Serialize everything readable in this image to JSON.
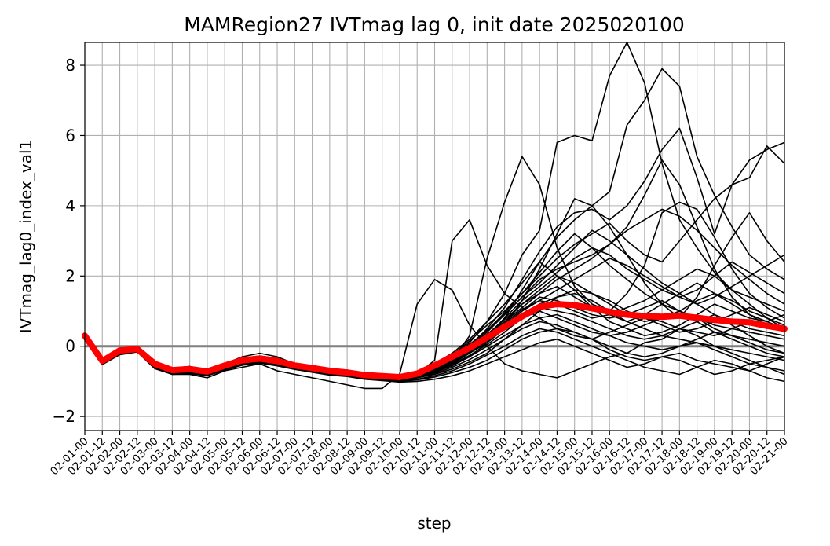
{
  "chart_data": {
    "type": "line",
    "title": "MAMRegion27 IVTmag lag 0, init date 2025020100",
    "xlabel": "step",
    "ylabel": "IVTmag_lag0_index_val1",
    "x": [
      "02-01-00",
      "02-01-12",
      "02-02-00",
      "02-02-12",
      "02-03-00",
      "02-03-12",
      "02-04-00",
      "02-04-12",
      "02-05-00",
      "02-05-12",
      "02-06-00",
      "02-06-12",
      "02-07-00",
      "02-07-12",
      "02-08-00",
      "02-08-12",
      "02-09-00",
      "02-09-12",
      "02-10-00",
      "02-10-12",
      "02-11-00",
      "02-11-12",
      "02-12-00",
      "02-12-12",
      "02-13-00",
      "02-13-12",
      "02-14-00",
      "02-14-12",
      "02-15-00",
      "02-15-12",
      "02-16-00",
      "02-16-12",
      "02-17-00",
      "02-17-12",
      "02-18-00",
      "02-18-12",
      "02-19-00",
      "02-19-12",
      "02-20-00",
      "02-20-12",
      "02-21-00"
    ],
    "ylim": [
      -2.4,
      8.65
    ],
    "yticks": [
      -2,
      0,
      2,
      4,
      6,
      8
    ],
    "ytick_labels": [
      "−2",
      "0",
      "2",
      "4",
      "6",
      "8"
    ],
    "grid": true,
    "reference_line": {
      "y": 0,
      "color": "#808080"
    },
    "ensemble_color": "#000000",
    "mean_color": "#ff0000",
    "mean": [
      0.3,
      -0.42,
      -0.12,
      -0.08,
      -0.5,
      -0.68,
      -0.65,
      -0.72,
      -0.55,
      -0.4,
      -0.35,
      -0.42,
      -0.55,
      -0.62,
      -0.7,
      -0.75,
      -0.82,
      -0.85,
      -0.88,
      -0.78,
      -0.55,
      -0.3,
      -0.05,
      0.25,
      0.55,
      0.85,
      1.12,
      1.2,
      1.17,
      1.08,
      0.98,
      0.9,
      0.86,
      0.84,
      0.87,
      0.81,
      0.75,
      0.7,
      0.68,
      0.58,
      0.5
    ],
    "ensemble_members": [
      [
        0.3,
        -0.5,
        -0.2,
        -0.1,
        -0.6,
        -0.8,
        -0.8,
        -0.9,
        -0.7,
        -0.6,
        -0.5,
        -0.7,
        -0.8,
        -0.9,
        -1.0,
        -1.1,
        -1.2,
        -1.2,
        -0.8,
        1.2,
        1.9,
        1.6,
        0.6,
        0.0,
        -0.5,
        -0.7,
        -0.8,
        -0.9,
        -0.7,
        -0.5,
        -0.3,
        -0.2,
        0.1,
        0.2,
        0.5,
        0.3,
        0.0,
        -0.2,
        -0.4,
        -0.6,
        -0.8
      ],
      [
        0.3,
        -0.4,
        -0.1,
        0.0,
        -0.5,
        -0.7,
        -0.6,
        -0.7,
        -0.5,
        -0.3,
        -0.2,
        -0.3,
        -0.5,
        -0.6,
        -0.7,
        -0.7,
        -0.8,
        -0.9,
        -1.0,
        -0.8,
        -0.4,
        3.0,
        3.6,
        2.3,
        1.5,
        1.1,
        0.8,
        0.5,
        0.3,
        0.2,
        0.4,
        0.6,
        0.8,
        0.7,
        0.5,
        0.4,
        0.3,
        0.5,
        0.7,
        0.6,
        0.4
      ],
      [
        0.3,
        -0.45,
        -0.15,
        -0.05,
        -0.55,
        -0.7,
        -0.7,
        -0.75,
        -0.6,
        -0.45,
        -0.4,
        -0.5,
        -0.6,
        -0.7,
        -0.75,
        -0.8,
        -0.9,
        -0.95,
        -1.0,
        -0.9,
        -0.7,
        -0.4,
        0.3,
        2.5,
        4.1,
        5.4,
        4.6,
        2.8,
        1.7,
        1.2,
        1.0,
        1.5,
        2.3,
        3.8,
        4.1,
        3.9,
        3.1,
        2.2,
        1.5,
        1.1,
        0.8
      ],
      [
        0.3,
        -0.4,
        -0.1,
        -0.05,
        -0.45,
        -0.65,
        -0.6,
        -0.7,
        -0.55,
        -0.4,
        -0.35,
        -0.4,
        -0.55,
        -0.6,
        -0.65,
        -0.7,
        -0.8,
        -0.85,
        -0.9,
        -0.8,
        -0.6,
        -0.3,
        0.1,
        0.7,
        1.5,
        2.6,
        3.3,
        5.8,
        6.0,
        5.85,
        7.7,
        8.65,
        7.5,
        5.2,
        3.6,
        2.8,
        2.1,
        1.6,
        1.4,
        1.2,
        1.0
      ],
      [
        0.3,
        -0.42,
        -0.12,
        -0.08,
        -0.5,
        -0.7,
        -0.65,
        -0.7,
        -0.55,
        -0.4,
        -0.35,
        -0.4,
        -0.5,
        -0.6,
        -0.7,
        -0.75,
        -0.8,
        -0.85,
        -0.9,
        -0.85,
        -0.7,
        -0.5,
        -0.2,
        0.2,
        0.8,
        1.6,
        2.4,
        3.1,
        3.6,
        4.0,
        4.4,
        6.3,
        7.0,
        7.9,
        7.4,
        5.4,
        4.3,
        3.4,
        2.6,
        2.2,
        1.9
      ],
      [
        0.3,
        -0.44,
        -0.14,
        -0.06,
        -0.52,
        -0.68,
        -0.66,
        -0.72,
        -0.58,
        -0.42,
        -0.36,
        -0.44,
        -0.56,
        -0.64,
        -0.72,
        -0.76,
        -0.84,
        -0.88,
        -0.92,
        -0.85,
        -0.65,
        -0.4,
        0.0,
        0.5,
        1.1,
        1.9,
        2.7,
        3.4,
        3.8,
        3.9,
        3.6,
        4.0,
        4.7,
        5.6,
        6.2,
        4.8,
        3.2,
        4.6,
        5.3,
        5.6,
        5.8
      ],
      [
        0.3,
        -0.38,
        -0.08,
        -0.04,
        -0.46,
        -0.64,
        -0.6,
        -0.68,
        -0.5,
        -0.36,
        -0.3,
        -0.36,
        -0.5,
        -0.58,
        -0.66,
        -0.7,
        -0.78,
        -0.82,
        -0.86,
        -0.76,
        -0.55,
        -0.25,
        0.15,
        0.6,
        1.0,
        1.5,
        2.0,
        2.5,
        2.9,
        3.2,
        3.5,
        3.0,
        2.6,
        2.4,
        3.0,
        3.6,
        4.2,
        4.6,
        4.8,
        5.7,
        5.2
      ],
      [
        0.3,
        -0.46,
        -0.16,
        -0.1,
        -0.55,
        -0.72,
        -0.7,
        -0.76,
        -0.6,
        -0.45,
        -0.4,
        -0.48,
        -0.58,
        -0.66,
        -0.74,
        -0.78,
        -0.86,
        -0.9,
        -0.94,
        -0.88,
        -0.75,
        -0.55,
        -0.3,
        0.1,
        0.6,
        1.3,
        2.2,
        3.2,
        4.2,
        4.0,
        3.4,
        2.6,
        1.8,
        1.2,
        0.8,
        1.4,
        2.3,
        3.1,
        3.8,
        3.0,
        2.4
      ],
      [
        0.3,
        -0.4,
        -0.1,
        -0.06,
        -0.48,
        -0.66,
        -0.62,
        -0.7,
        -0.52,
        -0.38,
        -0.32,
        -0.38,
        -0.52,
        -0.6,
        -0.68,
        -0.72,
        -0.8,
        -0.84,
        -0.88,
        -0.8,
        -0.6,
        -0.35,
        0.05,
        0.45,
        0.9,
        1.4,
        1.9,
        2.2,
        2.4,
        2.6,
        2.9,
        3.4,
        4.3,
        5.3,
        4.6,
        3.4,
        2.2,
        1.4,
        0.9,
        0.6,
        0.4
      ],
      [
        0.3,
        -0.48,
        -0.18,
        -0.12,
        -0.58,
        -0.74,
        -0.72,
        -0.78,
        -0.62,
        -0.48,
        -0.42,
        -0.5,
        -0.6,
        -0.68,
        -0.76,
        -0.8,
        -0.88,
        -0.92,
        -0.96,
        -0.9,
        -0.8,
        -0.65,
        -0.45,
        -0.2,
        0.2,
        0.6,
        1.0,
        1.4,
        1.5,
        1.3,
        1.0,
        0.7,
        0.5,
        0.3,
        0.2,
        0.1,
        0.0,
        -0.1,
        -0.2,
        -0.3,
        -0.4
      ],
      [
        0.3,
        -0.36,
        -0.06,
        -0.02,
        -0.44,
        -0.62,
        -0.58,
        -0.66,
        -0.48,
        -0.34,
        -0.28,
        -0.34,
        -0.48,
        -0.56,
        -0.64,
        -0.68,
        -0.76,
        -0.8,
        -0.84,
        -0.74,
        -0.5,
        -0.2,
        0.2,
        0.7,
        1.2,
        1.8,
        2.4,
        2.0,
        1.6,
        1.1,
        0.7,
        0.5,
        0.3,
        0.4,
        0.6,
        0.9,
        1.2,
        1.0,
        0.8,
        0.7,
        0.9
      ],
      [
        0.3,
        -0.5,
        -0.22,
        -0.14,
        -0.62,
        -0.78,
        -0.76,
        -0.82,
        -0.66,
        -0.52,
        -0.46,
        -0.54,
        -0.64,
        -0.72,
        -0.8,
        -0.84,
        -0.92,
        -0.96,
        -1.0,
        -0.96,
        -0.88,
        -0.75,
        -0.6,
        -0.4,
        -0.1,
        0.2,
        0.4,
        0.5,
        0.4,
        0.2,
        -0.1,
        -0.3,
        -0.4,
        -0.3,
        -0.2,
        -0.4,
        -0.5,
        -0.6,
        -0.7,
        -0.5,
        -0.3
      ],
      [
        0.3,
        -0.42,
        -0.1,
        -0.06,
        -0.48,
        -0.66,
        -0.62,
        -0.7,
        -0.54,
        -0.38,
        -0.34,
        -0.4,
        -0.52,
        -0.6,
        -0.68,
        -0.74,
        -0.82,
        -0.86,
        -0.9,
        -0.82,
        -0.62,
        -0.4,
        -0.1,
        0.3,
        0.8,
        1.3,
        1.7,
        2.1,
        2.5,
        2.8,
        2.6,
        2.2,
        1.9,
        1.6,
        1.4,
        1.6,
        2.0,
        2.4,
        2.1,
        1.8,
        1.5
      ],
      [
        0.3,
        -0.44,
        -0.12,
        -0.08,
        -0.5,
        -0.68,
        -0.64,
        -0.72,
        -0.56,
        -0.4,
        -0.36,
        -0.42,
        -0.54,
        -0.62,
        -0.7,
        -0.76,
        -0.84,
        -0.88,
        -0.92,
        -0.84,
        -0.66,
        -0.44,
        -0.15,
        0.2,
        0.6,
        1.0,
        1.4,
        1.3,
        1.1,
        0.9,
        0.8,
        0.9,
        1.1,
        1.3,
        1.0,
        0.7,
        0.4,
        0.2,
        0.0,
        -0.2,
        -0.3
      ],
      [
        0.3,
        -0.38,
        -0.06,
        -0.04,
        -0.46,
        -0.64,
        -0.6,
        -0.68,
        -0.52,
        -0.36,
        -0.3,
        -0.38,
        -0.5,
        -0.58,
        -0.66,
        -0.72,
        -0.8,
        -0.84,
        -0.88,
        -0.78,
        -0.58,
        -0.32,
        0.0,
        0.4,
        0.9,
        1.4,
        1.8,
        2.3,
        2.8,
        3.3,
        3.0,
        2.6,
        2.2,
        1.8,
        1.5,
        1.2,
        0.9,
        0.7,
        0.5,
        0.4,
        0.3
      ],
      [
        0.3,
        -0.46,
        -0.16,
        -0.1,
        -0.54,
        -0.72,
        -0.68,
        -0.74,
        -0.6,
        -0.46,
        -0.4,
        -0.46,
        -0.58,
        -0.66,
        -0.74,
        -0.78,
        -0.86,
        -0.9,
        -0.94,
        -0.88,
        -0.74,
        -0.56,
        -0.3,
        0.0,
        0.3,
        0.6,
        0.8,
        0.9,
        0.7,
        0.5,
        0.3,
        0.1,
        0.0,
        -0.1,
        0.0,
        0.2,
        0.4,
        0.3,
        0.2,
        0.1,
        0.0
      ],
      [
        0.3,
        -0.4,
        -0.08,
        -0.06,
        -0.48,
        -0.66,
        -0.62,
        -0.7,
        -0.54,
        -0.38,
        -0.34,
        -0.4,
        -0.52,
        -0.6,
        -0.68,
        -0.74,
        -0.82,
        -0.86,
        -0.9,
        -0.8,
        -0.6,
        -0.34,
        0.0,
        0.35,
        0.7,
        1.1,
        1.5,
        1.9,
        2.2,
        2.5,
        2.9,
        3.3,
        3.6,
        3.9,
        3.7,
        3.3,
        2.8,
        2.3,
        1.9,
        1.5,
        1.2
      ],
      [
        0.3,
        -0.52,
        -0.24,
        -0.16,
        -0.64,
        -0.8,
        -0.78,
        -0.84,
        -0.68,
        -0.54,
        -0.48,
        -0.56,
        -0.66,
        -0.74,
        -0.82,
        -0.86,
        -0.94,
        -0.98,
        -1.02,
        -1.0,
        -0.94,
        -0.84,
        -0.7,
        -0.5,
        -0.3,
        -0.1,
        0.1,
        0.2,
        0.0,
        -0.2,
        -0.4,
        -0.6,
        -0.5,
        -0.3,
        -0.4,
        -0.6,
        -0.8,
        -0.7,
        -0.5,
        -0.6,
        -0.7
      ],
      [
        0.3,
        -0.42,
        -0.12,
        -0.06,
        -0.5,
        -0.68,
        -0.64,
        -0.72,
        -0.56,
        -0.4,
        -0.34,
        -0.42,
        -0.54,
        -0.62,
        -0.7,
        -0.76,
        -0.84,
        -0.88,
        -0.92,
        -0.84,
        -0.64,
        -0.42,
        -0.12,
        0.25,
        0.65,
        1.05,
        1.3,
        1.2,
        1.0,
        0.8,
        0.9,
        1.1,
        1.3,
        1.6,
        1.9,
        2.2,
        2.0,
        1.6,
        1.2,
        0.8,
        0.5
      ],
      [
        0.3,
        -0.44,
        -0.14,
        -0.08,
        -0.52,
        -0.7,
        -0.66,
        -0.74,
        -0.58,
        -0.42,
        -0.38,
        -0.44,
        -0.56,
        -0.64,
        -0.72,
        -0.78,
        -0.86,
        -0.9,
        -0.94,
        -0.86,
        -0.7,
        -0.48,
        -0.2,
        0.1,
        0.5,
        0.9,
        1.2,
        1.4,
        1.6,
        1.5,
        1.3,
        1.0,
        0.8,
        0.6,
        0.4,
        0.5,
        0.7,
        0.9,
        1.1,
        0.9,
        0.7
      ],
      [
        0.3,
        -0.4,
        -0.1,
        -0.04,
        -0.48,
        -0.66,
        -0.62,
        -0.7,
        -0.54,
        -0.38,
        -0.32,
        -0.4,
        -0.52,
        -0.6,
        -0.68,
        -0.74,
        -0.82,
        -0.86,
        -0.9,
        -0.82,
        -0.62,
        -0.38,
        -0.08,
        0.3,
        0.7,
        1.2,
        1.6,
        2.0,
        1.8,
        1.5,
        1.2,
        0.9,
        0.7,
        0.8,
        1.0,
        1.3,
        1.5,
        1.3,
        1.0,
        0.8,
        0.6
      ],
      [
        0.3,
        -0.48,
        -0.18,
        -0.12,
        -0.56,
        -0.74,
        -0.7,
        -0.78,
        -0.62,
        -0.48,
        -0.42,
        -0.48,
        -0.6,
        -0.68,
        -0.76,
        -0.8,
        -0.88,
        -0.92,
        -0.96,
        -0.9,
        -0.78,
        -0.6,
        -0.38,
        -0.1,
        0.2,
        0.5,
        0.7,
        0.6,
        0.4,
        0.2,
        0.0,
        -0.2,
        -0.3,
        -0.2,
        0.0,
        0.1,
        -0.1,
        -0.3,
        -0.5,
        -0.4,
        -0.3
      ],
      [
        0.3,
        -0.36,
        -0.06,
        -0.02,
        -0.44,
        -0.62,
        -0.58,
        -0.66,
        -0.5,
        -0.34,
        -0.28,
        -0.36,
        -0.48,
        -0.56,
        -0.64,
        -0.7,
        -0.78,
        -0.82,
        -0.86,
        -0.76,
        -0.55,
        -0.28,
        0.05,
        0.45,
        0.95,
        1.5,
        2.1,
        2.7,
        3.2,
        2.8,
        2.3,
        1.9,
        1.5,
        1.2,
        1.0,
        0.8,
        0.6,
        0.5,
        0.4,
        0.3,
        0.2
      ],
      [
        0.3,
        -0.46,
        -0.16,
        -0.1,
        -0.54,
        -0.72,
        -0.68,
        -0.76,
        -0.6,
        -0.44,
        -0.4,
        -0.46,
        -0.58,
        -0.66,
        -0.74,
        -0.8,
        -0.88,
        -0.92,
        -0.96,
        -0.88,
        -0.72,
        -0.52,
        -0.26,
        0.05,
        0.4,
        0.8,
        1.0,
        0.8,
        0.6,
        0.4,
        0.3,
        0.4,
        0.6,
        0.8,
        1.0,
        0.8,
        0.5,
        0.3,
        0.1,
        -0.1,
        -0.2
      ],
      [
        0.3,
        -0.42,
        -0.12,
        -0.08,
        -0.5,
        -0.68,
        -0.64,
        -0.72,
        -0.56,
        -0.4,
        -0.36,
        -0.42,
        -0.54,
        -0.62,
        -0.7,
        -0.76,
        -0.84,
        -0.88,
        -0.92,
        -0.84,
        -0.66,
        -0.44,
        -0.14,
        0.2,
        0.6,
        1.0,
        1.3,
        1.6,
        1.9,
        2.2,
        2.5,
        2.3,
        2.0,
        1.7,
        1.4,
        1.2,
        1.4,
        1.7,
        2.0,
        2.3,
        2.6
      ],
      [
        0.3,
        -0.5,
        -0.2,
        -0.14,
        -0.6,
        -0.76,
        -0.74,
        -0.8,
        -0.64,
        -0.5,
        -0.44,
        -0.52,
        -0.62,
        -0.7,
        -0.78,
        -0.82,
        -0.9,
        -0.94,
        -0.98,
        -0.94,
        -0.84,
        -0.7,
        -0.5,
        -0.25,
        0.0,
        0.3,
        0.5,
        0.4,
        0.2,
        0.0,
        -0.2,
        -0.4,
        -0.6,
        -0.7,
        -0.8,
        -0.6,
        -0.4,
        -0.5,
        -0.7,
        -0.9,
        -1.0
      ],
      [
        0.3,
        -0.4,
        -0.08,
        -0.06,
        -0.48,
        -0.66,
        -0.62,
        -0.7,
        -0.52,
        -0.38,
        -0.32,
        -0.4,
        -0.52,
        -0.6,
        -0.68,
        -0.72,
        -0.8,
        -0.84,
        -0.88,
        -0.8,
        -0.6,
        -0.36,
        -0.04,
        0.34,
        0.76,
        1.2,
        1.5,
        1.7,
        1.4,
        1.1,
        0.9,
        0.7,
        0.9,
        1.2,
        1.5,
        1.8,
        1.5,
        1.2,
        0.9,
        0.7,
        0.5
      ],
      [
        0.3,
        -0.44,
        -0.14,
        -0.08,
        -0.52,
        -0.7,
        -0.66,
        -0.74,
        -0.58,
        -0.42,
        -0.38,
        -0.44,
        -0.56,
        -0.64,
        -0.72,
        -0.78,
        -0.86,
        -0.9,
        -0.94,
        -0.86,
        -0.68,
        -0.46,
        -0.18,
        0.15,
        0.5,
        0.85,
        1.1,
        1.0,
        0.9,
        0.7,
        0.5,
        0.3,
        0.2,
        0.3,
        0.5,
        0.7,
        0.9,
        0.6,
        0.3,
        0.0,
        -0.2
      ]
    ]
  }
}
